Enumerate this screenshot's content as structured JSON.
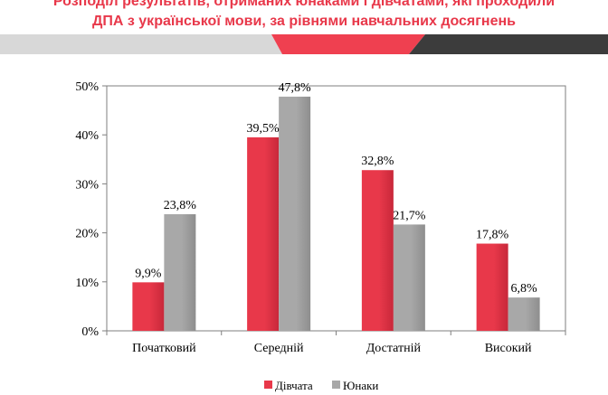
{
  "title_lines": [
    "Розподіл результатів, отриманих юнаками і дівчатами, які проходили",
    "ДПА з української мови, за рівнями навчальних досягнень"
  ],
  "colors": {
    "title": "#e8384a",
    "girls": "#e8384a",
    "boys": "#a8a8a8",
    "band_red": "#ef4050",
    "band_dark": "#3c3c3c",
    "band_grey": "#d8d8d8"
  },
  "chart_data": {
    "type": "bar",
    "categories": [
      "Початковий",
      "Середній",
      "Достатній",
      "Високий"
    ],
    "series": [
      {
        "name": "Дівчата",
        "values": [
          9.9,
          39.5,
          32.8,
          17.8
        ],
        "labels": [
          "9,9%",
          "39,5%",
          "32,8%",
          "17,8%"
        ]
      },
      {
        "name": "Юнаки",
        "values": [
          23.8,
          47.8,
          21.7,
          6.8
        ],
        "labels": [
          "23,8%",
          "47,8%",
          "21,7%",
          "6,8%"
        ]
      }
    ],
    "yticks": [
      "0%",
      "10%",
      "20%",
      "30%",
      "40%",
      "50%"
    ],
    "ylim": [
      0,
      50
    ],
    "legend_position": "bottom",
    "grid": false
  }
}
